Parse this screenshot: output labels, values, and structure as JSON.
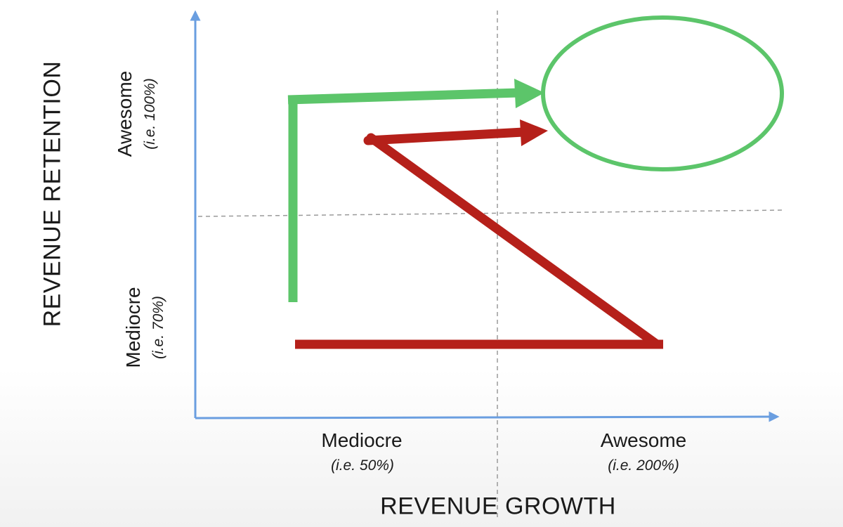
{
  "axes": {
    "y_title": "REVENUE RETENTION",
    "x_title": "REVENUE GROWTH",
    "y_ticks": [
      {
        "main": "Awesome",
        "sub": "(i.e.  100%)"
      },
      {
        "main": "Mediocre",
        "sub": "(i.e.  70%)"
      }
    ],
    "x_ticks": [
      {
        "main": "Mediocre",
        "sub": "(i.e.  50%)"
      },
      {
        "main": "Awesome",
        "sub": "(i.e.  200%)"
      }
    ]
  },
  "colors": {
    "axis": "#6a9ee0",
    "divider": "#9a9a9a",
    "green_path": "#5cc56a",
    "red_path": "#b5201a",
    "target_ellipse": "#5cc56a"
  }
}
